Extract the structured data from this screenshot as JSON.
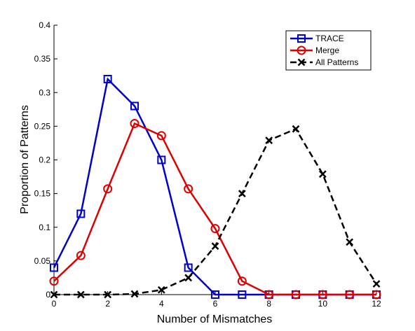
{
  "chart_data": {
    "type": "line",
    "xlabel": "Number of Mismatches",
    "ylabel": "Proportion of Patterns",
    "xlim": [
      0,
      12
    ],
    "ylim": [
      0,
      0.4
    ],
    "x_ticks": [
      "0",
      "2",
      "4",
      "6",
      "8",
      "10",
      "12"
    ],
    "y_ticks": [
      "0",
      "0.05",
      "0.1",
      "0.15",
      "0.2",
      "0.25",
      "0.3",
      "0.35",
      "0.4"
    ],
    "legend_position": "top-right",
    "grid": false,
    "series": [
      {
        "name": "TRACE",
        "color": "#0000cc",
        "marker": "square",
        "line_style": "solid",
        "x": [
          0,
          1,
          2,
          3,
          4,
          5,
          6,
          7,
          8,
          9,
          10,
          11,
          12
        ],
        "values": [
          0.04,
          0.12,
          0.32,
          0.28,
          0.2,
          0.04,
          0,
          0,
          0,
          0,
          0,
          0,
          0
        ]
      },
      {
        "name": "Merge",
        "color": "#dd0000",
        "marker": "circle",
        "line_style": "solid",
        "x": [
          0,
          1,
          2,
          3,
          4,
          5,
          6,
          7,
          8,
          9,
          10,
          11,
          12
        ],
        "values": [
          0.02,
          0.058,
          0.157,
          0.254,
          0.236,
          0.157,
          0.098,
          0.02,
          0,
          0,
          0,
          0,
          0
        ]
      },
      {
        "name": "All Patterns",
        "color": "#000000",
        "marker": "x",
        "line_style": "dashed",
        "x": [
          0,
          1,
          2,
          3,
          4,
          5,
          6,
          7,
          8,
          9,
          10,
          11,
          12
        ],
        "values": [
          0,
          0,
          0,
          0.001,
          0.007,
          0.025,
          0.072,
          0.15,
          0.229,
          0.246,
          0.179,
          0.078,
          0.016
        ]
      }
    ]
  }
}
